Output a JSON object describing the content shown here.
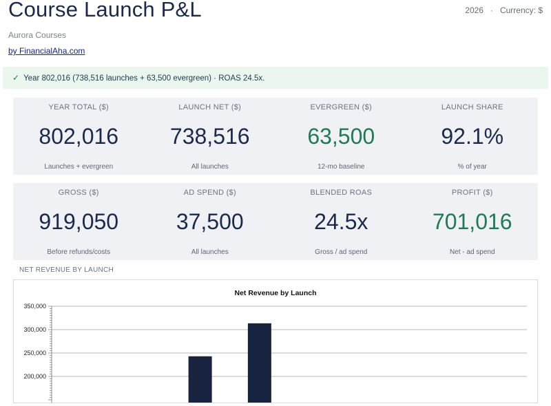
{
  "header": {
    "title": "Course Launch P&L",
    "year": "2026",
    "currency": "Currency: $",
    "company": "Aurora Courses",
    "byline": "by FinancialAha.com"
  },
  "banner": {
    "check": "✓",
    "text": "Year 802,016 (738,516 launches + 63,500 evergreen) · ROAS 24.5x."
  },
  "kpis_row1": [
    {
      "label": "YEAR TOTAL ($)",
      "value": "802,016",
      "sub": "Launches + evergreen",
      "accent": "#1b2a4a"
    },
    {
      "label": "LAUNCH NET ($)",
      "value": "738,516",
      "sub": "All launches",
      "accent": "#1b2a4a"
    },
    {
      "label": "EVERGREEN ($)",
      "value": "63,500",
      "sub": "12-mo baseline",
      "accent": "#1f7a55"
    },
    {
      "label": "LAUNCH SHARE",
      "value": "92.1%",
      "sub": "% of year",
      "accent": "#1b2a4a"
    }
  ],
  "kpis_row2": [
    {
      "label": "GROSS ($)",
      "value": "919,050",
      "sub": "Before refunds/costs",
      "accent": "#1b2a4a"
    },
    {
      "label": "AD SPEND ($)",
      "value": "37,500",
      "sub": "All launches",
      "accent": "#1b2a4a"
    },
    {
      "label": "BLENDED ROAS",
      "value": "24.5x",
      "sub": "Gross / ad spend",
      "accent": "#1b2a4a"
    },
    {
      "label": "PROFIT ($)",
      "value": "701,016",
      "sub": "Net - ad spend",
      "accent": "#1f7a55"
    }
  ],
  "chart_section": {
    "title": "NET REVENUE BY LAUNCH"
  },
  "chart_data": {
    "type": "bar",
    "title": "Net Revenue by Launch",
    "categories": [
      "",
      "",
      "",
      "",
      "",
      "",
      "",
      ""
    ],
    "values": [
      null,
      null,
      243000,
      313500,
      null,
      null,
      null,
      null
    ],
    "ylim": [
      150000,
      350000
    ],
    "yticks": [
      {
        "v": 200000,
        "label": "200,000"
      },
      {
        "v": 250000,
        "label": "250,000"
      },
      {
        "v": 300000,
        "label": "300,000"
      },
      {
        "v": 350000,
        "label": "350,000"
      }
    ],
    "bar_color": "#17233f",
    "grid": true
  }
}
